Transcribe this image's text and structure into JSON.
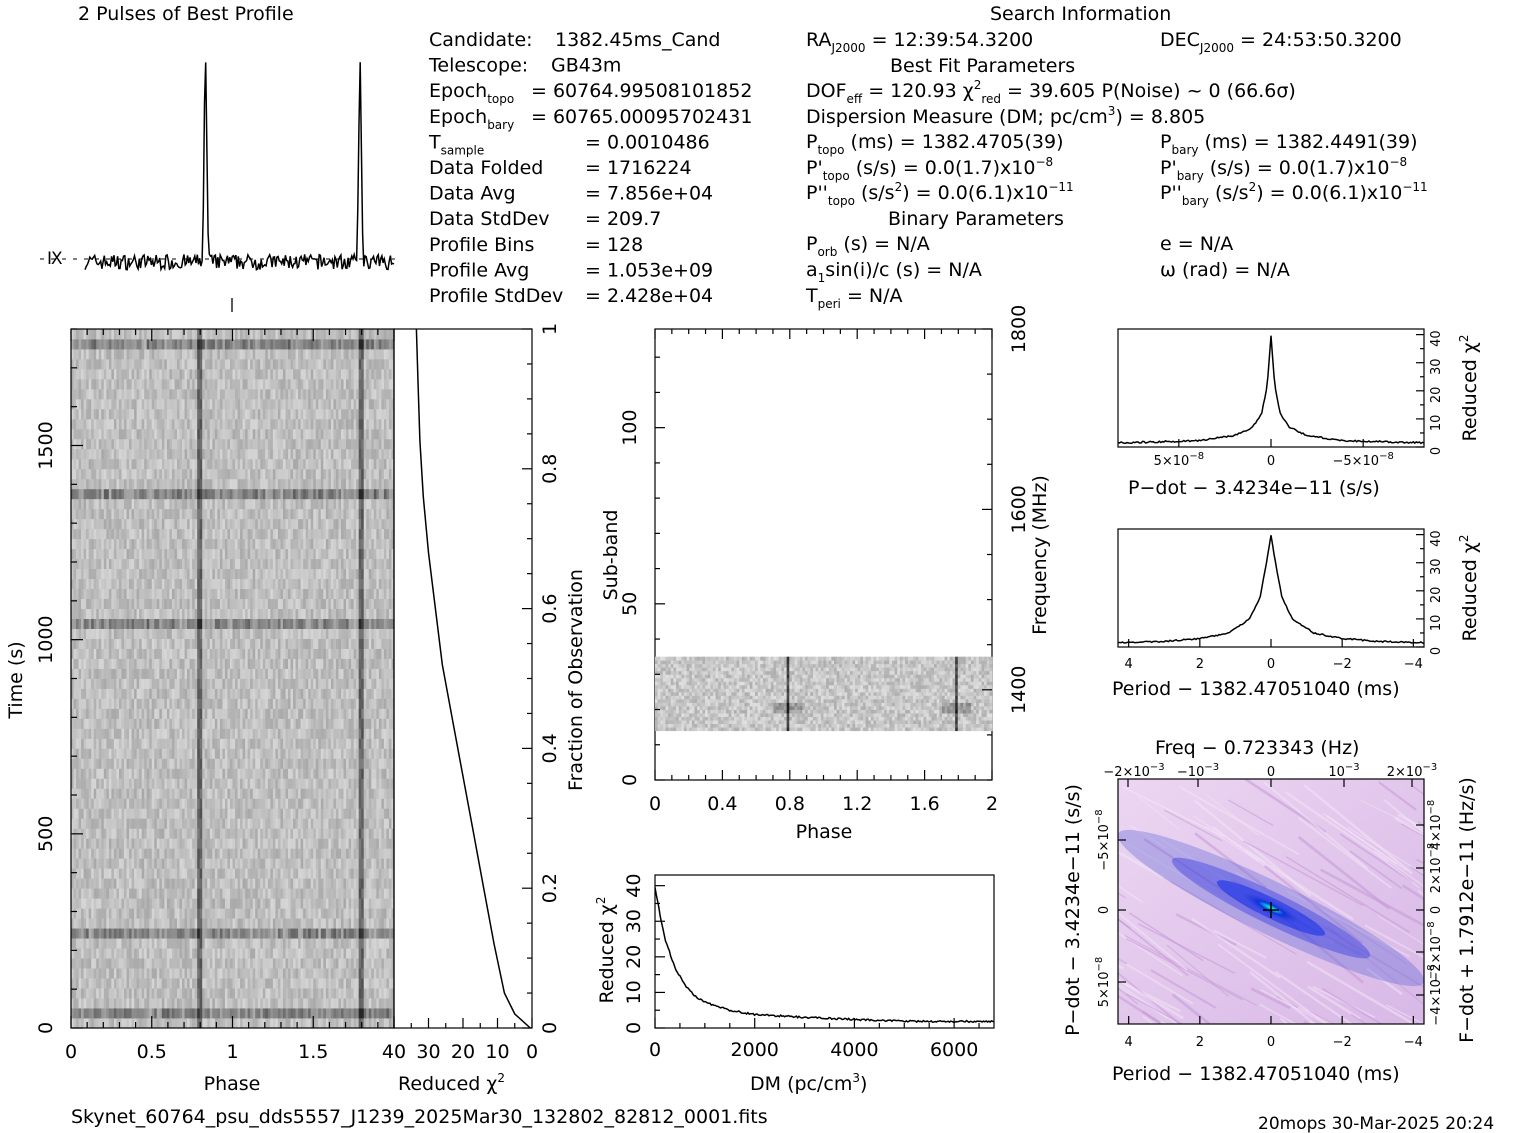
{
  "titles": {
    "profile": "2 Pulses of Best Profile",
    "search": "Search Information",
    "best_fit": "Best Fit Parameters",
    "binary": "Binary Parameters",
    "filename": "Skynet_60764_psu_dds5557_J1239_2025Mar30_132802_82812_0001.fits",
    "footer": "20mops 30-Mar-2025 20:24"
  },
  "info_left": [
    {
      "label": "Candidate:",
      "value": "1382.45ms_Cand"
    },
    {
      "label": "Telescope:",
      "value": "GB43m"
    },
    {
      "label": "Epoch",
      "sub": "topo",
      "value": "= 60764.99508101852"
    },
    {
      "label": "Epoch",
      "sub": "bary",
      "value": "= 60765.00095702431"
    },
    {
      "label": "T",
      "sub": "sample",
      "value": "=   0.0010486"
    },
    {
      "label": "Data Folded",
      "value": "=   1716224"
    },
    {
      "label": "Data Avg",
      "value": "=   7.856e+04"
    },
    {
      "label": "Data StdDev",
      "value": "=   209.7"
    },
    {
      "label": "Profile Bins",
      "value": "=   128"
    },
    {
      "label": "Profile Avg",
      "value": "=   1.053e+09"
    },
    {
      "label": "Profile StdDev",
      "value": "=   2.428e+04"
    }
  ],
  "info_mid": {
    "ra": "= 12:39:54.3200",
    "dof": "DOF",
    "dof_val": "= 120.93",
    "chi_val": "= 39.605",
    "pnoise": "P(Noise) ~ 0",
    "sigma": "(66.6σ)",
    "dm": "Dispersion Measure (DM; pc/cm",
    "dm_val": ") = 8.805",
    "ptopo": "(ms) =  1382.4705(39)",
    "pdtopo": "(s/s) = 0.0(1.7)x10",
    "pdtopo_exp": "−8",
    "pddtopo": "(s/s",
    "pddtopo_val": ") = 0.0(6.1)x10",
    "pddtopo_exp": "−11",
    "porb": "(s) = N/A",
    "a1": "a",
    "a1_rest": "sin(i)/c (s) = N/A",
    "tperi": "= N/A"
  },
  "info_right": {
    "dec": "= 24:53:50.3200",
    "pbary": "(ms) =  1382.4491(39)",
    "pdbary": "(s/s) = 0.0(1.7)x10",
    "pdbary_exp": "−8",
    "pddbary": "(s/s",
    "pddbary_val": ") = 0.0(6.1)x10",
    "pddbary_exp": "−11",
    "ecc": "e = N/A",
    "omega": "ω (rad) = N/A"
  },
  "axes": {
    "time_label": "Time (s)",
    "phase_label": "Phase",
    "redchi_label": "Reduced χ",
    "fraction_label": "Fraction of Observation",
    "subband_label": "Sub-band",
    "freq_label": "Frequency (MHz)",
    "dm_label": "DM (pc/cm",
    "pdot_label": "P−dot − 3.4234e−11 (s/s)",
    "period_label": "Period − 1382.47051040 (ms)",
    "freq_top_label": "Freq − 0.723343 (Hz)",
    "pdot2_label": "P−dot − 3.4234e−11 (s/s)",
    "fdot_label": "F−dot + 1.7912e−11 (Hz/s)"
  },
  "ticks": {
    "time": [
      "0",
      "500",
      "1000",
      "1500"
    ],
    "phase1": [
      "0",
      "0.5",
      "1",
      "1.5"
    ],
    "redchi_time": [
      "40",
      "30",
      "20",
      "10",
      "0"
    ],
    "fraction": [
      "0",
      "0.2",
      "0.4",
      "0.6",
      "0.8",
      "1"
    ],
    "subband": [
      "0",
      "50",
      "100"
    ],
    "phase2": [
      "0",
      "0.4",
      "0.8",
      "1.2",
      "1.6",
      "2"
    ],
    "freq": [
      "1400",
      "1600",
      "1800"
    ],
    "dm": [
      "0",
      "2000",
      "4000",
      "6000"
    ],
    "redchi": [
      "0",
      "10",
      "20",
      "30",
      "40"
    ],
    "pdot_x": [
      "5×10",
      "0",
      "−5×10"
    ],
    "pdot_x_exp": "−8",
    "period": [
      "4",
      "2",
      "0",
      "−2",
      "−4"
    ],
    "freq_top": [
      "−2×10",
      "−10",
      "0",
      "10",
      "2×10"
    ],
    "freq_top_exp": "−3",
    "pdot2_y": [
      "−5×10",
      "0",
      "5×10"
    ],
    "fdot_y": [
      "4×10",
      "2×10",
      "0",
      "−2×10",
      "−4×10"
    ],
    "fdot_exp": "−8"
  },
  "chart_data": [
    {
      "type": "line",
      "title": "2 Pulses of Best Profile",
      "x_range": [
        0,
        2
      ],
      "pulse_phases": [
        0.78,
        1.78
      ],
      "peak_relative": 1.0,
      "baseline_relative": 0.0
    },
    {
      "type": "heatmap",
      "xlabel": "Phase",
      "ylabel": "Time (s)",
      "xlim": [
        0,
        2
      ],
      "ylim": [
        0,
        1800
      ],
      "dark_phase_bands": [
        0.8,
        1.8
      ],
      "bright_rows_time_s": [
        40,
        250,
        1040,
        1380,
        1750
      ]
    },
    {
      "type": "line",
      "xlabel": "Reduced χ2",
      "ylabel": "Fraction of Observation",
      "xlim": [
        40,
        0
      ],
      "ylim": [
        0,
        1
      ],
      "x": [
        0.5,
        5,
        8,
        11,
        14,
        17,
        20,
        23,
        26,
        28,
        30,
        31.5,
        32.5,
        33,
        33.5
      ],
      "y": [
        0.0,
        0.02,
        0.05,
        0.12,
        0.2,
        0.28,
        0.36,
        0.44,
        0.52,
        0.6,
        0.68,
        0.76,
        0.84,
        0.92,
        1.0
      ]
    },
    {
      "type": "heatmap",
      "xlabel": "Phase",
      "ylabel": "Sub-band",
      "xlim": [
        0,
        2
      ],
      "ylim": [
        0,
        128
      ],
      "data_subbands": [
        14,
        35
      ],
      "pulse_phases": [
        0.79,
        1.79
      ],
      "freq_axis_mhz": [
        1400,
        1600,
        1800
      ]
    },
    {
      "type": "line",
      "xlabel": "DM (pc/cm3)",
      "ylabel": "Reduced χ2",
      "xlim": [
        0,
        6800
      ],
      "ylim": [
        0,
        43
      ],
      "x": [
        0,
        100,
        200,
        400,
        600,
        800,
        1000,
        1500,
        2000,
        3000,
        4000,
        5000,
        6000,
        6800
      ],
      "y": [
        39.6,
        32,
        25,
        17,
        12,
        9,
        7.2,
        5,
        3.8,
        3,
        2.4,
        1.9,
        1.8,
        1.9
      ]
    },
    {
      "type": "line",
      "xlabel": "P−dot − 3.4234e−11 (s/s)",
      "ylabel": "Reduced χ2",
      "xlim": [
        8.3e-08,
        -8.3e-08
      ],
      "ylim": [
        0,
        42
      ],
      "x": [
        8.3e-08,
        4e-08,
        2e-08,
        1e-08,
        5e-09,
        2e-09,
        0,
        -2e-09,
        -5e-09,
        -1e-08,
        -2e-08,
        -4e-08,
        -8.3e-08
      ],
      "y": [
        1.5,
        2.2,
        4,
        7,
        12,
        22,
        39.6,
        22,
        12,
        7,
        4,
        2.2,
        1.5
      ]
    },
    {
      "type": "line",
      "xlabel": "Period − 1382.47051040 (ms)",
      "ylabel": "Reduced χ2",
      "xlim": [
        4.3,
        -4.3
      ],
      "ylim": [
        0,
        42
      ],
      "x": [
        4.3,
        3,
        2,
        1.2,
        0.6,
        0.3,
        0.1,
        0,
        -0.1,
        -0.3,
        -0.6,
        -1.2,
        -2,
        -3,
        -4.3
      ],
      "y": [
        1.5,
        2,
        3,
        5,
        10,
        18,
        32,
        39.6,
        32,
        18,
        10,
        5,
        3,
        2,
        1.5
      ]
    },
    {
      "type": "heatmap",
      "xlabel": "Period − 1382.47051040 (ms)",
      "ylabel": "P−dot − 3.4234e−11 (s/s)",
      "xlim": [
        4.3,
        -4.3
      ],
      "peak": [
        0,
        0
      ]
    }
  ]
}
